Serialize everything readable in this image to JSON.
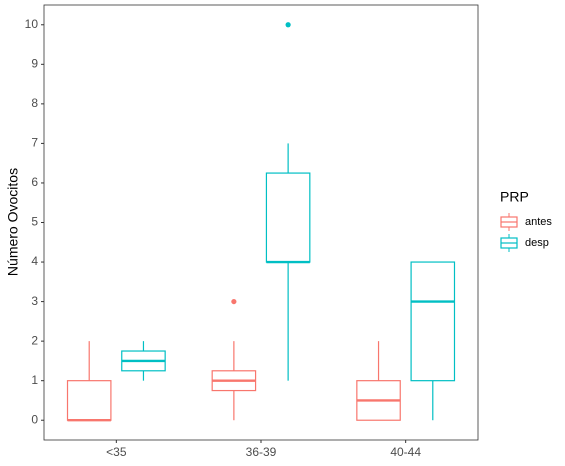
{
  "chart_data": {
    "type": "boxplot",
    "y_label": "Número Ovocitos",
    "categories": [
      "<35",
      "36-39",
      "40-44"
    ],
    "legend_title": "PRP",
    "series": [
      {
        "name": "antes",
        "color": "#F8766D",
        "values": [
          {
            "min": 0,
            "q1": 0,
            "median": 0,
            "q3": 1,
            "max": 2,
            "outliers": []
          },
          {
            "min": 0,
            "q1": 0.75,
            "median": 1,
            "q3": 1.25,
            "max": 2,
            "outliers": [
              3
            ]
          },
          {
            "min": 0,
            "q1": 0,
            "median": 0.5,
            "q3": 1,
            "max": 2,
            "outliers": []
          }
        ]
      },
      {
        "name": "desp",
        "color": "#00BFC4",
        "values": [
          {
            "min": 1,
            "q1": 1.25,
            "median": 1.5,
            "q3": 1.75,
            "max": 2,
            "outliers": []
          },
          {
            "min": 1,
            "q1": 4,
            "median": 4,
            "q3": 6.25,
            "max": 7,
            "outliers": [
              10
            ]
          },
          {
            "min": 0,
            "q1": 1,
            "median": 3,
            "q3": 4,
            "max": 4,
            "outliers": []
          }
        ]
      }
    ],
    "ylim": [
      -0.5,
      10.5
    ],
    "yticks": [
      0,
      1,
      2,
      3,
      4,
      5,
      6,
      7,
      8,
      9,
      10
    ],
    "grid": false,
    "legend_position": "right"
  }
}
